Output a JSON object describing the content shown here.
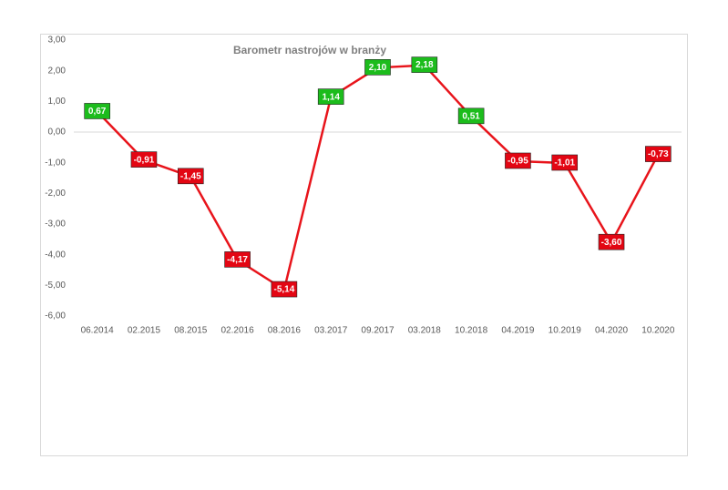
{
  "chart_data": {
    "type": "line",
    "title": "Barometr nastrojów w branży",
    "categories": [
      "06.2014",
      "02.2015",
      "08.2015",
      "02.2016",
      "08.2016",
      "03.2017",
      "09.2017",
      "03.2018",
      "10.2018",
      "04.2019",
      "10.2019",
      "04.2020",
      "10.2020"
    ],
    "values": [
      0.67,
      -0.91,
      -1.45,
      -4.17,
      -5.14,
      1.14,
      2.1,
      2.18,
      0.51,
      -0.95,
      -1.01,
      -3.6,
      -0.73
    ],
    "value_labels": [
      "0,67",
      "-0,91",
      "-1,45",
      "-4,17",
      "-5,14",
      "1,14",
      "2,10",
      "2,18",
      "0,51",
      "-0,95",
      "-1,01",
      "-3,60",
      "-0,73"
    ],
    "color": "#e8141b",
    "positive_label_color": "#1cbc1c",
    "negative_label_color": "#e30613",
    "ylim": [
      -6,
      3
    ],
    "yticks": [
      {
        "value": 3,
        "label": "3,00"
      },
      {
        "value": 2,
        "label": "2,00"
      },
      {
        "value": 1,
        "label": "1,00"
      },
      {
        "value": 0,
        "label": "0,00"
      },
      {
        "value": -1,
        "label": "-1,00"
      },
      {
        "value": -2,
        "label": "-2,00"
      },
      {
        "value": -3,
        "label": "-3,00"
      },
      {
        "value": -4,
        "label": "-4,00"
      },
      {
        "value": -5,
        "label": "-5,00"
      },
      {
        "value": -6,
        "label": "-6,00"
      }
    ],
    "grid": false
  }
}
